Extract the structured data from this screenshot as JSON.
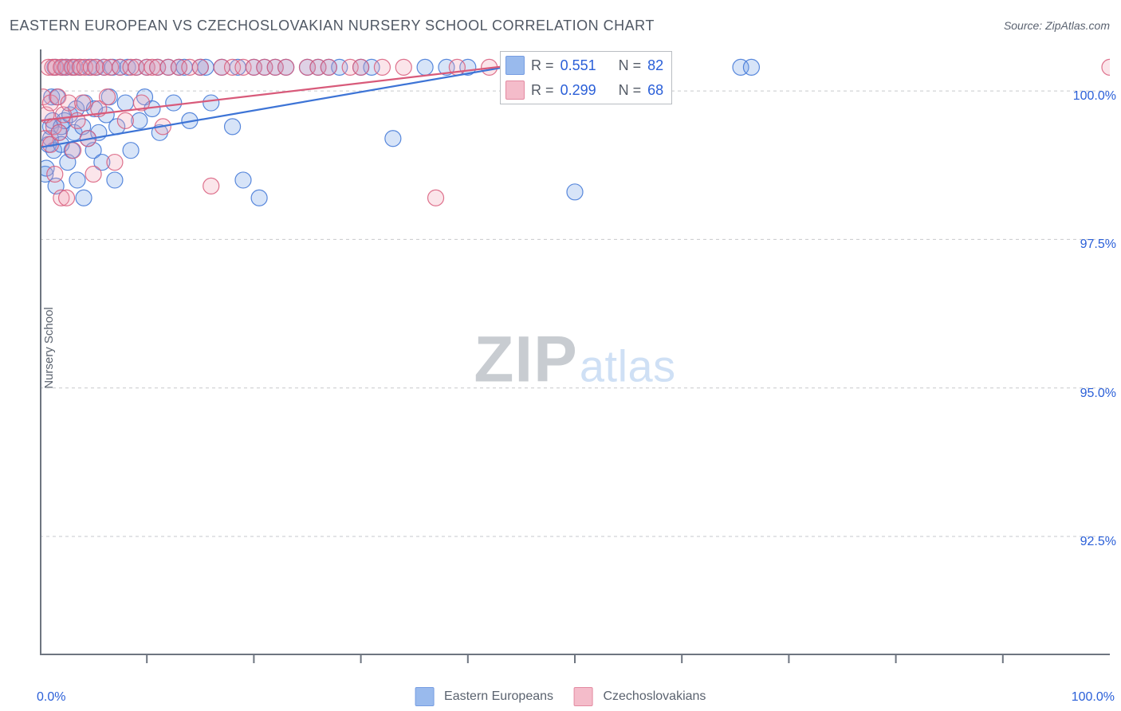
{
  "title": "EASTERN EUROPEAN VS CZECHOSLOVAKIAN NURSERY SCHOOL CORRELATION CHART",
  "source_label": "Source: ZipAtlas.com",
  "watermark": {
    "part1": "ZIP",
    "part2": "atlas"
  },
  "ylabel": "Nursery School",
  "chart": {
    "type": "scatter",
    "xlim": [
      0,
      100
    ],
    "ylim": [
      90.5,
      100.7
    ],
    "x_axis_label_left": "0.0%",
    "x_axis_label_right": "100.0%",
    "y_ticks": [
      92.5,
      95.0,
      97.5,
      100.0
    ],
    "y_tick_labels": [
      "92.5%",
      "95.0%",
      "97.5%",
      "100.0%"
    ],
    "x_minor_ticks": [
      10,
      20,
      30,
      40,
      50,
      60,
      70,
      80,
      90
    ],
    "grid_color": "#c7c9cc",
    "axis_color": "#6e7580",
    "background_color": "#ffffff",
    "marker_radius": 10,
    "marker_fill_opacity": 0.28,
    "marker_stroke_opacity": 0.85,
    "marker_stroke_width": 1.2,
    "trend_line_width": 2.2
  },
  "series": [
    {
      "name": "Eastern Europeans",
      "color_stroke": "#3d74d6",
      "color_fill": "#6f9de6",
      "R": 0.551,
      "N": 82,
      "trend": {
        "y_at_x0": 99.05,
        "y_at_x45": 100.45
      },
      "points": [
        [
          0.5,
          98.6
        ],
        [
          0.6,
          98.7
        ],
        [
          0.8,
          99.1
        ],
        [
          1.0,
          99.2
        ],
        [
          1.0,
          99.4
        ],
        [
          1.1,
          99.9
        ],
        [
          1.2,
          99.5
        ],
        [
          1.3,
          99.0
        ],
        [
          1.4,
          100.4
        ],
        [
          1.5,
          98.4
        ],
        [
          1.6,
          99.9
        ],
        [
          1.8,
          99.3
        ],
        [
          2.0,
          99.1
        ],
        [
          2.0,
          99.4
        ],
        [
          2.1,
          100.4
        ],
        [
          2.3,
          99.5
        ],
        [
          2.5,
          100.4
        ],
        [
          2.6,
          98.8
        ],
        [
          2.8,
          99.6
        ],
        [
          3.0,
          99.0
        ],
        [
          3.1,
          100.4
        ],
        [
          3.2,
          99.3
        ],
        [
          3.4,
          99.7
        ],
        [
          3.5,
          98.5
        ],
        [
          3.7,
          100.4
        ],
        [
          4.0,
          99.4
        ],
        [
          4.1,
          98.2
        ],
        [
          4.2,
          99.8
        ],
        [
          4.5,
          99.2
        ],
        [
          4.6,
          100.4
        ],
        [
          5.0,
          99.0
        ],
        [
          5.1,
          99.7
        ],
        [
          5.3,
          100.4
        ],
        [
          5.5,
          99.3
        ],
        [
          5.8,
          98.8
        ],
        [
          6.0,
          100.4
        ],
        [
          6.2,
          99.6
        ],
        [
          6.5,
          99.9
        ],
        [
          6.8,
          100.4
        ],
        [
          7.0,
          98.5
        ],
        [
          7.2,
          99.4
        ],
        [
          7.5,
          100.4
        ],
        [
          8.0,
          99.8
        ],
        [
          8.2,
          100.4
        ],
        [
          8.5,
          99.0
        ],
        [
          9.0,
          100.4
        ],
        [
          9.3,
          99.5
        ],
        [
          9.8,
          99.9
        ],
        [
          10.0,
          100.4
        ],
        [
          10.5,
          99.7
        ],
        [
          11.0,
          100.4
        ],
        [
          11.2,
          99.3
        ],
        [
          12.0,
          100.4
        ],
        [
          12.5,
          99.8
        ],
        [
          13.0,
          100.4
        ],
        [
          13.5,
          100.4
        ],
        [
          14.0,
          99.5
        ],
        [
          15.0,
          100.4
        ],
        [
          15.5,
          100.4
        ],
        [
          16.0,
          99.8
        ],
        [
          17.0,
          100.4
        ],
        [
          18.0,
          99.4
        ],
        [
          18.5,
          100.4
        ],
        [
          19.0,
          98.5
        ],
        [
          20.0,
          100.4
        ],
        [
          20.5,
          98.2
        ],
        [
          21.0,
          100.4
        ],
        [
          22.0,
          100.4
        ],
        [
          23.0,
          100.4
        ],
        [
          25.0,
          100.4
        ],
        [
          26.0,
          100.4
        ],
        [
          27.0,
          100.4
        ],
        [
          28.0,
          100.4
        ],
        [
          30.0,
          100.4
        ],
        [
          31.0,
          100.4
        ],
        [
          33.0,
          99.2
        ],
        [
          36.0,
          100.4
        ],
        [
          38.0,
          100.4
        ],
        [
          40.0,
          100.4
        ],
        [
          50.0,
          98.3
        ],
        [
          65.5,
          100.4
        ],
        [
          66.5,
          100.4
        ]
      ]
    },
    {
      "name": "Czechoslovakians",
      "color_stroke": "#d85a7a",
      "color_fill": "#f0a0b4",
      "R": 0.299,
      "N": 68,
      "trend": {
        "y_at_x0": 99.5,
        "y_at_x45": 100.45
      },
      "points": [
        [
          0.3,
          99.9
        ],
        [
          0.5,
          99.2
        ],
        [
          0.6,
          99.6
        ],
        [
          0.8,
          100.4
        ],
        [
          1.0,
          99.1
        ],
        [
          1.0,
          99.8
        ],
        [
          1.2,
          100.4
        ],
        [
          1.3,
          99.4
        ],
        [
          1.4,
          98.6
        ],
        [
          1.5,
          100.4
        ],
        [
          1.7,
          99.9
        ],
        [
          1.8,
          99.3
        ],
        [
          2.0,
          100.4
        ],
        [
          2.0,
          98.2
        ],
        [
          2.2,
          99.6
        ],
        [
          2.4,
          100.4
        ],
        [
          2.5,
          98.2
        ],
        [
          2.7,
          99.8
        ],
        [
          3.0,
          100.4
        ],
        [
          3.1,
          99.0
        ],
        [
          3.3,
          100.4
        ],
        [
          3.5,
          99.5
        ],
        [
          3.8,
          100.4
        ],
        [
          4.0,
          99.8
        ],
        [
          4.2,
          100.4
        ],
        [
          4.5,
          99.2
        ],
        [
          4.8,
          100.4
        ],
        [
          5.0,
          98.6
        ],
        [
          5.2,
          100.4
        ],
        [
          5.5,
          99.7
        ],
        [
          6.0,
          100.4
        ],
        [
          6.3,
          99.9
        ],
        [
          6.6,
          100.4
        ],
        [
          7.0,
          98.8
        ],
        [
          7.5,
          100.4
        ],
        [
          8.0,
          99.5
        ],
        [
          8.5,
          100.4
        ],
        [
          9.0,
          100.4
        ],
        [
          9.5,
          99.8
        ],
        [
          10.0,
          100.4
        ],
        [
          10.5,
          100.4
        ],
        [
          11.0,
          100.4
        ],
        [
          11.5,
          99.4
        ],
        [
          12.0,
          100.4
        ],
        [
          13.0,
          100.4
        ],
        [
          14.0,
          100.4
        ],
        [
          15.0,
          100.4
        ],
        [
          16.0,
          98.4
        ],
        [
          17.0,
          100.4
        ],
        [
          18.0,
          100.4
        ],
        [
          19.0,
          100.4
        ],
        [
          20.0,
          100.4
        ],
        [
          21.0,
          100.4
        ],
        [
          22.0,
          100.4
        ],
        [
          23.0,
          100.4
        ],
        [
          25.0,
          100.4
        ],
        [
          26.0,
          100.4
        ],
        [
          27.0,
          100.4
        ],
        [
          29.0,
          100.4
        ],
        [
          30.0,
          100.4
        ],
        [
          32.0,
          100.4
        ],
        [
          34.0,
          100.4
        ],
        [
          37.0,
          98.2
        ],
        [
          39.0,
          100.4
        ],
        [
          42.0,
          100.4
        ],
        [
          45.0,
          100.4
        ],
        [
          48.0,
          100.4
        ],
        [
          100.0,
          100.4
        ]
      ]
    }
  ],
  "legend_bottom": {
    "item1_label": "Eastern Europeans",
    "item2_label": "Czechoslovakians"
  },
  "legend_float": {
    "row1_R_label": "R =",
    "row1_R_value": "0.551",
    "row1_N_label": "N =",
    "row1_N_value": "82",
    "row2_R_label": "R =",
    "row2_R_value": "0.299",
    "row2_N_label": "N =",
    "row2_N_value": "68"
  }
}
